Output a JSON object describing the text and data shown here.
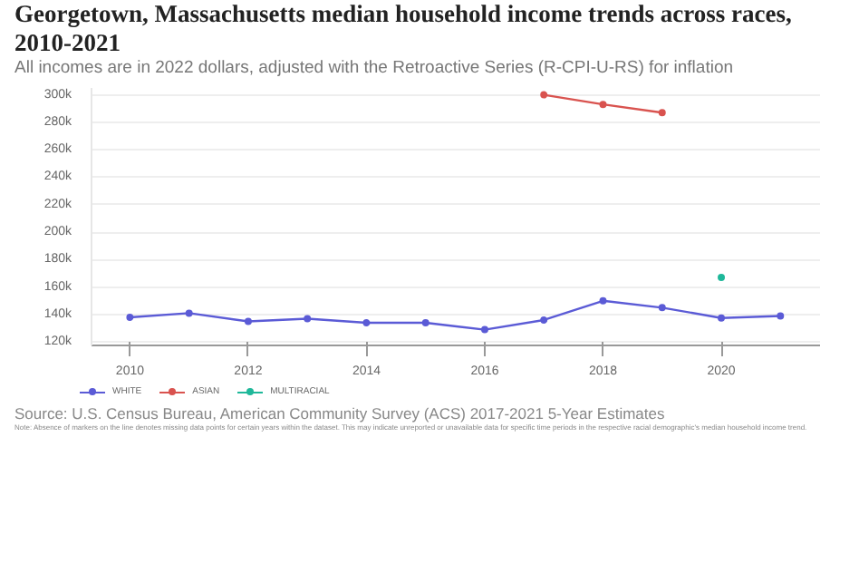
{
  "chart_data": {
    "type": "line",
    "title": "Georgetown, Massachusetts median household income trends across races, 2010-2021",
    "subtitle": "All incomes are in 2022 dollars, adjusted with the Retroactive Series (R-CPI-U-RS) for inflation",
    "x": [
      2010,
      2011,
      2012,
      2013,
      2014,
      2015,
      2016,
      2017,
      2018,
      2019,
      2020,
      2021
    ],
    "series": [
      {
        "name": "WHITE",
        "color": "#5b5bd6",
        "values": [
          138000,
          141000,
          135000,
          137000,
          134000,
          134000,
          129000,
          136000,
          150000,
          145000,
          137500,
          139000
        ]
      },
      {
        "name": "ASIAN",
        "color": "#d9534f",
        "values": [
          null,
          null,
          null,
          null,
          null,
          null,
          null,
          300000,
          293000,
          287000,
          null,
          null
        ]
      },
      {
        "name": "MULTIRACIAL",
        "color": "#1fb89a",
        "values": [
          null,
          null,
          null,
          null,
          null,
          null,
          null,
          null,
          null,
          null,
          167000,
          null
        ]
      }
    ],
    "xlim": [
      2009.35,
      2021.67
    ],
    "xticks": [
      2010,
      2012,
      2014,
      2016,
      2018,
      2020
    ],
    "ylim": [
      117500,
      305000
    ],
    "yticks": [
      {
        "value": 120000,
        "label": "120k"
      },
      {
        "value": 140000,
        "label": "140k"
      },
      {
        "value": 160000,
        "label": "160k"
      },
      {
        "value": 180000,
        "label": "180k"
      },
      {
        "value": 200000,
        "label": "200k"
      },
      {
        "value": 220000,
        "label": "220k"
      },
      {
        "value": 240000,
        "label": "240k"
      },
      {
        "value": 260000,
        "label": "260k"
      },
      {
        "value": 280000,
        "label": "280k"
      },
      {
        "value": 300000,
        "label": "300k"
      }
    ],
    "grid": "y",
    "legend": "bottom left",
    "marker": "circle",
    "line_style": "solid",
    "annotations": [
      "Source: U.S. Census Bureau, American Community Survey (ACS) 2017-2021 5-Year Estimates",
      "Note: Absence of markers on the line denotes missing data points for certain years within the dataset. This may indicate unreported or unavailable data for specific time periods in the respective racial demographic's median household income trend."
    ]
  }
}
